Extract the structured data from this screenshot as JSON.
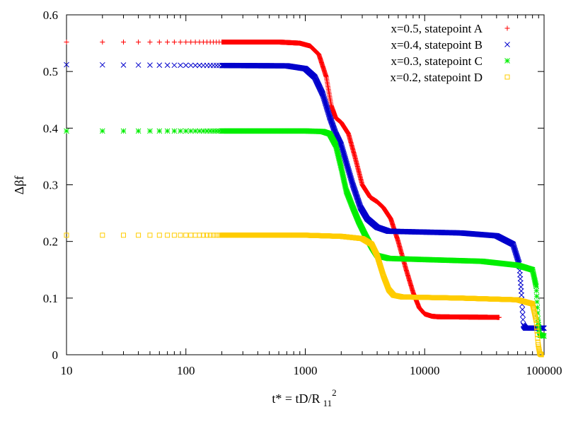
{
  "chart_data": {
    "type": "scatter",
    "title": "",
    "xlabel": "t* = tD/R",
    "xlabel_sub": "11",
    "xlabel_sup": "2",
    "ylabel": "Δβf",
    "xscale": "log",
    "xlim": [
      10,
      100000
    ],
    "ylim": [
      0,
      0.6
    ],
    "xticks": [
      10,
      100,
      1000,
      10000,
      100000
    ],
    "xtick_labels": [
      "10",
      "100",
      "1000",
      "10000",
      "100000"
    ],
    "yticks": [
      0,
      0.1,
      0.2,
      0.3,
      0.4,
      0.5,
      0.6
    ],
    "ytick_labels": [
      "0",
      "0.1",
      "0.2",
      "0.3",
      "0.4",
      "0.5",
      "0.6"
    ],
    "grid": false,
    "legend_position": "top-right",
    "series": [
      {
        "name": "x=0.5, statepoint A",
        "marker": "+",
        "color": "#ff0000",
        "x_range": [
          10,
          42000
        ],
        "points": [
          [
            10,
            0.552
          ],
          [
            600,
            0.552
          ],
          [
            900,
            0.55
          ],
          [
            1100,
            0.545
          ],
          [
            1300,
            0.53
          ],
          [
            1500,
            0.49
          ],
          [
            1650,
            0.44
          ],
          [
            1800,
            0.418
          ],
          [
            2000,
            0.41
          ],
          [
            2300,
            0.39
          ],
          [
            2600,
            0.35
          ],
          [
            3000,
            0.3
          ],
          [
            3500,
            0.278
          ],
          [
            4000,
            0.27
          ],
          [
            4500,
            0.26
          ],
          [
            5200,
            0.24
          ],
          [
            6000,
            0.2
          ],
          [
            7000,
            0.15
          ],
          [
            8000,
            0.11
          ],
          [
            9000,
            0.083
          ],
          [
            10000,
            0.072
          ],
          [
            11500,
            0.068
          ],
          [
            13000,
            0.067
          ],
          [
            42000,
            0.066
          ]
        ]
      },
      {
        "name": "x=0.4, statepoint B",
        "marker": "x",
        "color": "#0000cc",
        "x_range": [
          10,
          100000
        ],
        "points": [
          [
            10,
            0.512
          ],
          [
            700,
            0.51
          ],
          [
            1000,
            0.505
          ],
          [
            1200,
            0.49
          ],
          [
            1400,
            0.46
          ],
          [
            1600,
            0.42
          ],
          [
            1800,
            0.39
          ],
          [
            2000,
            0.37
          ],
          [
            2200,
            0.34
          ],
          [
            2500,
            0.3
          ],
          [
            2900,
            0.26
          ],
          [
            3300,
            0.24
          ],
          [
            4000,
            0.225
          ],
          [
            5000,
            0.218
          ],
          [
            8000,
            0.217
          ],
          [
            20000,
            0.215
          ],
          [
            40000,
            0.21
          ],
          [
            55000,
            0.195
          ],
          [
            62000,
            0.16
          ],
          [
            65000,
            0.1
          ],
          [
            67000,
            0.052
          ],
          [
            70000,
            0.047
          ],
          [
            100000,
            0.047
          ]
        ]
      },
      {
        "name": "x=0.3, statepoint C",
        "marker": "*",
        "color": "#00ee00",
        "x_range": [
          10,
          100000
        ],
        "points": [
          [
            10,
            0.395
          ],
          [
            1000,
            0.395
          ],
          [
            1400,
            0.394
          ],
          [
            1600,
            0.39
          ],
          [
            1800,
            0.37
          ],
          [
            2000,
            0.33
          ],
          [
            2200,
            0.29
          ],
          [
            2500,
            0.26
          ],
          [
            2800,
            0.235
          ],
          [
            3200,
            0.21
          ],
          [
            3600,
            0.19
          ],
          [
            4000,
            0.175
          ],
          [
            5000,
            0.17
          ],
          [
            10000,
            0.168
          ],
          [
            30000,
            0.165
          ],
          [
            60000,
            0.158
          ],
          [
            80000,
            0.15
          ],
          [
            86000,
            0.12
          ],
          [
            89000,
            0.06
          ],
          [
            92000,
            0.035
          ],
          [
            100000,
            0.033
          ]
        ]
      },
      {
        "name": "x=0.2, statepoint D",
        "marker": "square",
        "color": "#ffcc00",
        "x_range": [
          10,
          95000
        ],
        "points": [
          [
            10,
            0.211
          ],
          [
            1000,
            0.211
          ],
          [
            2000,
            0.209
          ],
          [
            3000,
            0.205
          ],
          [
            3600,
            0.195
          ],
          [
            4000,
            0.175
          ],
          [
            4500,
            0.14
          ],
          [
            5000,
            0.115
          ],
          [
            5500,
            0.105
          ],
          [
            6500,
            0.102
          ],
          [
            20000,
            0.1
          ],
          [
            60000,
            0.097
          ],
          [
            80000,
            0.09
          ],
          [
            86000,
            0.06
          ],
          [
            89000,
            0.02
          ],
          [
            92000,
            0.002
          ],
          [
            95000,
            0
          ]
        ]
      }
    ]
  }
}
